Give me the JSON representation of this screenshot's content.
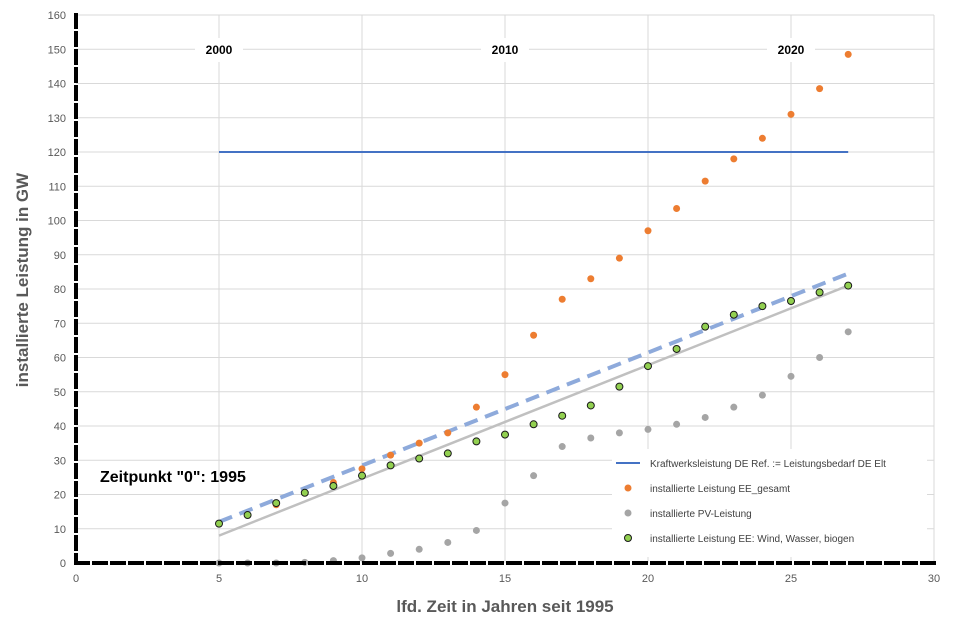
{
  "chart_data": {
    "type": "scatter",
    "title": "",
    "xlabel": "lfd. Zeit in Jahren seit 1995",
    "ylabel": "installierte Leistung in GW",
    "xlim": [
      0,
      30
    ],
    "ylim": [
      0,
      160
    ],
    "x_ticks": [
      0,
      5,
      10,
      15,
      20,
      25,
      30
    ],
    "y_ticks": [
      0,
      10,
      20,
      30,
      40,
      50,
      60,
      70,
      80,
      90,
      100,
      110,
      120,
      130,
      140,
      150,
      160
    ],
    "grid": true,
    "legend_position": "bottom-right",
    "decade_labels": [
      {
        "x": 5,
        "text": "2000"
      },
      {
        "x": 15,
        "text": "2010"
      },
      {
        "x": 25,
        "text": "2020"
      }
    ],
    "annotation": "Zeitpunkt \"0\": 1995",
    "series": [
      {
        "name": "Kraftwerksleistung DE Ref. := Leistungsbedarf DE Elt",
        "kind": "line",
        "color": "#4472c4",
        "x": [
          5,
          27
        ],
        "y": [
          120,
          120
        ]
      },
      {
        "name": "installierte Leistung EE_gesamt",
        "kind": "scatter",
        "color": "#ed7d31",
        "x": [
          5,
          6,
          7,
          8,
          9,
          10,
          11,
          12,
          13,
          14,
          15,
          16,
          17,
          18,
          19,
          20,
          21,
          22,
          23,
          24,
          25,
          26,
          27
        ],
        "y": [
          11.5,
          14,
          17,
          20.5,
          23.5,
          27.5,
          31.5,
          35,
          38,
          45.5,
          55,
          66.5,
          77,
          83,
          89,
          97,
          103.5,
          111.5,
          118,
          124,
          131,
          138.5,
          148.5
        ]
      },
      {
        "name": "installierte PV-Leistung",
        "kind": "scatter",
        "color": "#a5a5a5",
        "x": [
          5,
          6,
          7,
          8,
          9,
          10,
          11,
          12,
          13,
          14,
          15,
          16,
          17,
          18,
          19,
          20,
          21,
          22,
          23,
          24,
          25,
          26,
          27
        ],
        "y": [
          0,
          0,
          0,
          0.2,
          0.7,
          1.5,
          2.8,
          4,
          6,
          9.5,
          17.5,
          25.5,
          34,
          36.5,
          38,
          39,
          40.5,
          42.5,
          45.5,
          49,
          54.5,
          60,
          67.5
        ]
      },
      {
        "name": "installierte Leistung EE: Wind, Wasser, biogen",
        "kind": "scatter",
        "color": "#92d050",
        "x": [
          5,
          6,
          7,
          8,
          9,
          10,
          11,
          12,
          13,
          14,
          15,
          16,
          17,
          18,
          19,
          20,
          21,
          22,
          23,
          24,
          25,
          26,
          27
        ],
        "y": [
          11.5,
          14,
          17.5,
          20.5,
          22.5,
          25.5,
          28.5,
          30.5,
          32,
          35.5,
          37.5,
          40.5,
          43,
          46,
          51.5,
          57.5,
          62.5,
          69,
          72.5,
          75,
          76.5,
          79,
          81
        ]
      }
    ],
    "trendlines": [
      {
        "color": "#c0c0c0",
        "style": "solid",
        "x": [
          5,
          27
        ],
        "y": [
          8,
          81
        ]
      },
      {
        "color": "#8eaadb",
        "style": "dashed",
        "x": [
          5,
          27
        ],
        "y": [
          12,
          84.5
        ]
      }
    ]
  }
}
